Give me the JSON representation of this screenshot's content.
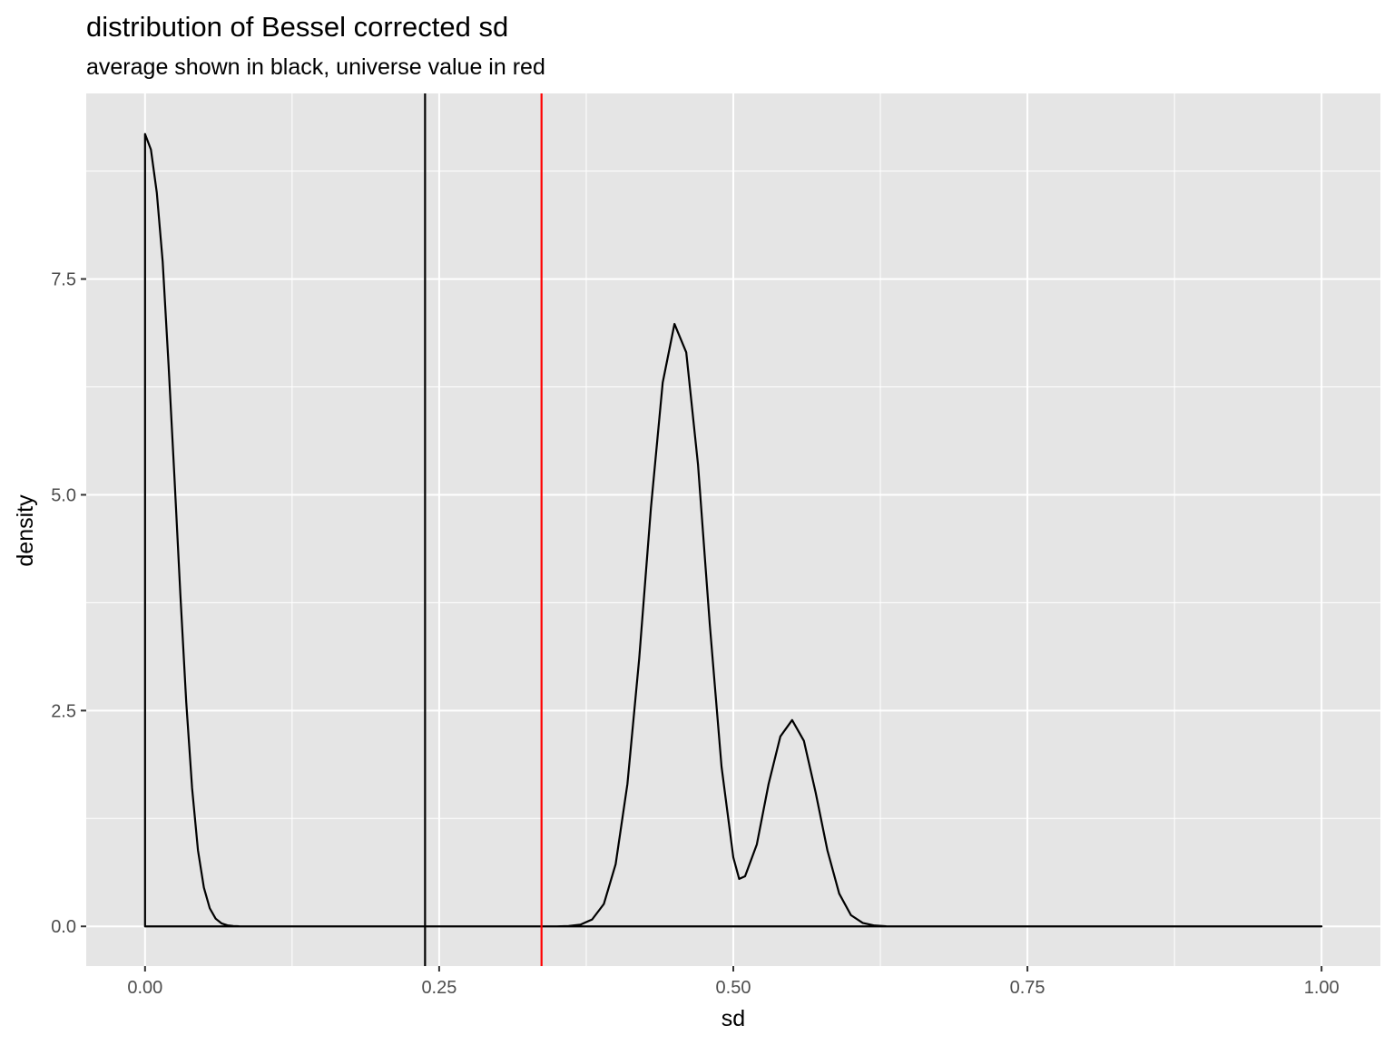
{
  "chart_data": {
    "type": "line",
    "title": "distribution of Bessel corrected sd",
    "subtitle": "average shown in black, universe value in red",
    "xlabel": "sd",
    "ylabel": "density",
    "xlim": [
      -0.05,
      1.05
    ],
    "ylim": [
      -0.46,
      9.65
    ],
    "x_ticks": [
      0.0,
      0.25,
      0.5,
      0.75,
      1.0
    ],
    "x_tick_labels": [
      "0.00",
      "0.25",
      "0.50",
      "0.75",
      "1.00"
    ],
    "y_ticks": [
      0.0,
      2.5,
      5.0,
      7.5
    ],
    "y_tick_labels": [
      "0.0",
      "2.5",
      "5.0",
      "7.5"
    ],
    "grid": true,
    "background_color": "#e5e5e5",
    "grid_color": "#ffffff",
    "density_color": "#000000",
    "density": {
      "x": [
        0.0,
        0.005,
        0.01,
        0.015,
        0.02,
        0.025,
        0.03,
        0.035,
        0.04,
        0.045,
        0.05,
        0.055,
        0.06,
        0.065,
        0.07,
        0.075,
        0.08,
        0.09,
        0.1,
        0.15,
        0.2,
        0.25,
        0.3,
        0.35,
        0.36,
        0.37,
        0.38,
        0.39,
        0.4,
        0.41,
        0.42,
        0.43,
        0.44,
        0.45,
        0.46,
        0.47,
        0.48,
        0.49,
        0.5,
        0.505,
        0.51,
        0.52,
        0.53,
        0.54,
        0.55,
        0.56,
        0.57,
        0.58,
        0.59,
        0.6,
        0.61,
        0.62,
        0.63,
        0.65,
        0.7,
        0.8,
        0.9,
        1.0
      ],
      "y": [
        9.18,
        9.0,
        8.5,
        7.7,
        6.5,
        5.2,
        3.85,
        2.6,
        1.6,
        0.88,
        0.45,
        0.21,
        0.09,
        0.035,
        0.012,
        0.004,
        0.001,
        0.0,
        0.0,
        0.0,
        0.0,
        0.0,
        0.0,
        0.0,
        0.004,
        0.02,
        0.08,
        0.26,
        0.72,
        1.65,
        3.1,
        4.85,
        6.3,
        6.98,
        6.65,
        5.35,
        3.5,
        1.85,
        0.8,
        0.55,
        0.58,
        0.95,
        1.65,
        2.2,
        2.39,
        2.15,
        1.55,
        0.88,
        0.38,
        0.13,
        0.04,
        0.01,
        0.002,
        0.0,
        0.0,
        0.0,
        0.0,
        0.0
      ]
    },
    "reference_lines": [
      {
        "x": 0.238,
        "color": "#000000"
      },
      {
        "x": 0.337,
        "color": "#ff0000"
      }
    ]
  }
}
